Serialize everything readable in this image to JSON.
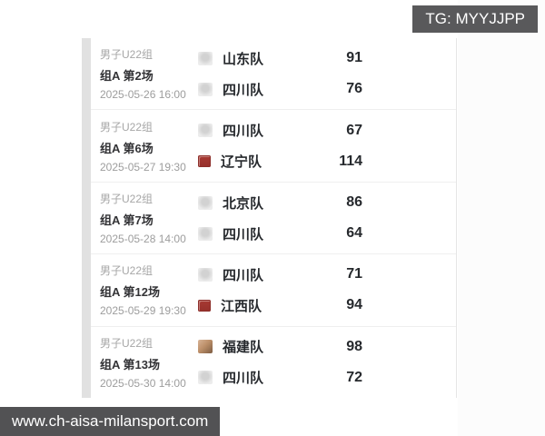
{
  "watermarks": {
    "top": "TG: MYYJJPP",
    "bottom": "www.ch-aisa-milansport.com"
  },
  "colors": {
    "watermark_badge_bg": "#59595b",
    "red_logo": "#a83a33",
    "score_text": "#26292d",
    "muted_text": "#a6a6a6",
    "divider": "#efefef"
  },
  "matches": [
    {
      "group": "男子U22组",
      "round": "组A 第2场",
      "datetime": "2025-05-26 16:00",
      "teams": [
        {
          "name": "山东队",
          "score": "91",
          "logo": "gray"
        },
        {
          "name": "四川队",
          "score": "76",
          "logo": "gray"
        }
      ]
    },
    {
      "group": "男子U22组",
      "round": "组A 第6场",
      "datetime": "2025-05-27 19:30",
      "teams": [
        {
          "name": "四川队",
          "score": "67",
          "logo": "gray"
        },
        {
          "name": "辽宁队",
          "score": "114",
          "logo": "red"
        }
      ]
    },
    {
      "group": "男子U22组",
      "round": "组A 第7场",
      "datetime": "2025-05-28 14:00",
      "teams": [
        {
          "name": "北京队",
          "score": "86",
          "logo": "gray"
        },
        {
          "name": "四川队",
          "score": "64",
          "logo": "gray"
        }
      ]
    },
    {
      "group": "男子U22组",
      "round": "组A 第12场",
      "datetime": "2025-05-29 19:30",
      "teams": [
        {
          "name": "四川队",
          "score": "71",
          "logo": "gray"
        },
        {
          "name": "江西队",
          "score": "94",
          "logo": "red"
        }
      ]
    },
    {
      "group": "男子U22组",
      "round": "组A 第13场",
      "datetime": "2025-05-30 14:00",
      "teams": [
        {
          "name": "福建队",
          "score": "98",
          "logo": "photo"
        },
        {
          "name": "四川队",
          "score": "72",
          "logo": "gray"
        }
      ]
    }
  ]
}
